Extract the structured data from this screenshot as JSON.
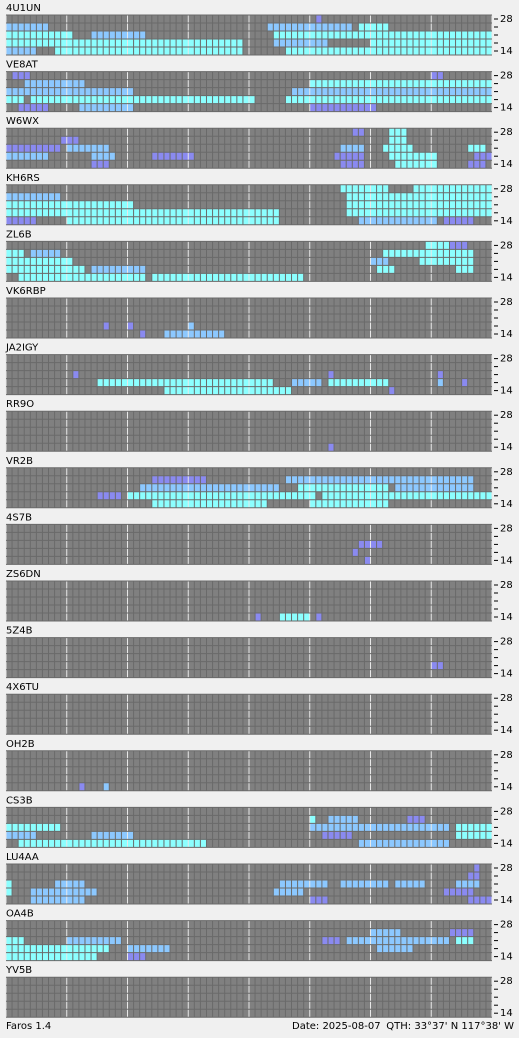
{
  "band_labels": {
    "top": "28",
    "bottom": "14"
  },
  "level_colors": [
    "#8a8af0",
    "#8cc8ff",
    "#8cffff"
  ],
  "panels": [
    {
      "name": "4U1UN",
      "spans": [
        [
          0,
          51,
          51,
          1
        ],
        [
          1,
          0,
          6,
          2
        ],
        [
          1,
          43,
          56,
          2
        ],
        [
          1,
          58,
          62,
          3
        ],
        [
          2,
          0,
          10,
          3
        ],
        [
          2,
          14,
          22,
          2
        ],
        [
          2,
          44,
          79,
          3
        ],
        [
          3,
          0,
          38,
          3
        ],
        [
          3,
          44,
          52,
          2
        ],
        [
          3,
          60,
          79,
          3
        ],
        [
          4,
          0,
          4,
          2
        ],
        [
          4,
          8,
          38,
          3
        ],
        [
          4,
          46,
          79,
          3
        ]
      ]
    },
    {
      "name": "VE8AT",
      "spans": [
        [
          0,
          1,
          3,
          1
        ],
        [
          0,
          70,
          71,
          1
        ],
        [
          1,
          3,
          12,
          2
        ],
        [
          1,
          50,
          79,
          3
        ],
        [
          2,
          0,
          20,
          2
        ],
        [
          2,
          47,
          79,
          2
        ],
        [
          3,
          0,
          2,
          3
        ],
        [
          3,
          4,
          40,
          3
        ],
        [
          3,
          46,
          79,
          3
        ],
        [
          4,
          2,
          6,
          1
        ],
        [
          4,
          12,
          20,
          2
        ],
        [
          4,
          50,
          60,
          1
        ]
      ]
    },
    {
      "name": "W6WX",
      "spans": [
        [
          0,
          57,
          58,
          1
        ],
        [
          0,
          63,
          65,
          3
        ],
        [
          1,
          9,
          11,
          1
        ],
        [
          1,
          63,
          65,
          3
        ],
        [
          2,
          0,
          8,
          1
        ],
        [
          2,
          10,
          16,
          2
        ],
        [
          2,
          55,
          58,
          2
        ],
        [
          2,
          62,
          66,
          3
        ],
        [
          2,
          76,
          78,
          3
        ],
        [
          3,
          0,
          6,
          2
        ],
        [
          3,
          14,
          17,
          2
        ],
        [
          3,
          24,
          30,
          1
        ],
        [
          3,
          54,
          58,
          1
        ],
        [
          3,
          63,
          70,
          3
        ],
        [
          3,
          77,
          79,
          1
        ],
        [
          4,
          14,
          16,
          1
        ],
        [
          4,
          55,
          58,
          1
        ],
        [
          4,
          64,
          70,
          3
        ],
        [
          4,
          76,
          78,
          1
        ]
      ]
    },
    {
      "name": "KH6RS",
      "spans": [
        [
          0,
          55,
          62,
          3
        ],
        [
          0,
          67,
          79,
          3
        ],
        [
          1,
          0,
          8,
          2
        ],
        [
          1,
          56,
          79,
          3
        ],
        [
          2,
          0,
          20,
          3
        ],
        [
          2,
          56,
          79,
          3
        ],
        [
          3,
          0,
          44,
          3
        ],
        [
          3,
          56,
          79,
          3
        ],
        [
          4,
          0,
          4,
          1
        ],
        [
          4,
          10,
          44,
          3
        ],
        [
          4,
          58,
          70,
          2
        ],
        [
          4,
          72,
          76,
          1
        ]
      ]
    },
    {
      "name": "ZL6B",
      "spans": [
        [
          0,
          69,
          72,
          3
        ],
        [
          0,
          73,
          75,
          1
        ],
        [
          1,
          0,
          2,
          3
        ],
        [
          1,
          4,
          8,
          2
        ],
        [
          1,
          62,
          76,
          3
        ],
        [
          2,
          0,
          10,
          3
        ],
        [
          2,
          60,
          62,
          2
        ],
        [
          2,
          68,
          76,
          3
        ],
        [
          3,
          0,
          12,
          3
        ],
        [
          3,
          14,
          22,
          2
        ],
        [
          3,
          61,
          63,
          3
        ],
        [
          3,
          74,
          76,
          3
        ],
        [
          4,
          2,
          22,
          3
        ],
        [
          4,
          24,
          48,
          3
        ]
      ]
    },
    {
      "name": "VK6RBP",
      "spans": [
        [
          3,
          16,
          16,
          1
        ],
        [
          3,
          20,
          20,
          1
        ],
        [
          3,
          30,
          30,
          2
        ],
        [
          4,
          22,
          22,
          1
        ],
        [
          4,
          26,
          35,
          2
        ]
      ]
    },
    {
      "name": "JA2IGY",
      "spans": [
        [
          2,
          11,
          11,
          1
        ],
        [
          2,
          53,
          53,
          1
        ],
        [
          2,
          71,
          71,
          1
        ],
        [
          3,
          15,
          43,
          3
        ],
        [
          3,
          47,
          51,
          2
        ],
        [
          3,
          53,
          62,
          3
        ],
        [
          3,
          71,
          71,
          2
        ],
        [
          3,
          75,
          75,
          1
        ],
        [
          4,
          26,
          46,
          3
        ],
        [
          4,
          63,
          63,
          1
        ]
      ]
    },
    {
      "name": "RR9O",
      "spans": [
        [
          4,
          53,
          53,
          1
        ]
      ]
    },
    {
      "name": "VR2B",
      "spans": [
        [
          1,
          24,
          32,
          1
        ],
        [
          1,
          46,
          76,
          2
        ],
        [
          2,
          22,
          44,
          2
        ],
        [
          2,
          48,
          62,
          3
        ],
        [
          2,
          64,
          76,
          2
        ],
        [
          3,
          15,
          18,
          1
        ],
        [
          3,
          20,
          50,
          3
        ],
        [
          3,
          52,
          79,
          3
        ],
        [
          4,
          24,
          42,
          3
        ],
        [
          4,
          50,
          62,
          3
        ]
      ]
    },
    {
      "name": "4S7B",
      "spans": [
        [
          2,
          58,
          61,
          1
        ],
        [
          3,
          57,
          57,
          1
        ],
        [
          4,
          59,
          59,
          1
        ]
      ]
    },
    {
      "name": "ZS6DN",
      "spans": [
        [
          4,
          41,
          41,
          1
        ],
        [
          4,
          45,
          49,
          3
        ],
        [
          4,
          51,
          51,
          1
        ]
      ]
    },
    {
      "name": "5Z4B",
      "spans": [
        [
          3,
          70,
          71,
          1
        ]
      ]
    },
    {
      "name": "4X6TU",
      "spans": []
    },
    {
      "name": "OH2B",
      "spans": [
        [
          4,
          12,
          12,
          1
        ],
        [
          4,
          16,
          16,
          2
        ]
      ]
    },
    {
      "name": "CS3B",
      "spans": [
        [
          1,
          50,
          50,
          3
        ],
        [
          1,
          53,
          57,
          2
        ],
        [
          1,
          66,
          68,
          1
        ],
        [
          2,
          0,
          8,
          3
        ],
        [
          2,
          50,
          72,
          2
        ],
        [
          2,
          74,
          79,
          3
        ],
        [
          3,
          0,
          4,
          2
        ],
        [
          3,
          14,
          20,
          2
        ],
        [
          3,
          52,
          56,
          1
        ],
        [
          3,
          74,
          79,
          3
        ],
        [
          4,
          2,
          32,
          3
        ],
        [
          4,
          58,
          72,
          2
        ]
      ]
    },
    {
      "name": "LU4AA",
      "spans": [
        [
          0,
          77,
          77,
          1
        ],
        [
          1,
          76,
          77,
          1
        ],
        [
          2,
          0,
          0,
          3
        ],
        [
          2,
          8,
          12,
          2
        ],
        [
          2,
          45,
          52,
          2
        ],
        [
          2,
          55,
          62,
          2
        ],
        [
          2,
          64,
          68,
          2
        ],
        [
          2,
          74,
          77,
          2
        ],
        [
          3,
          0,
          0,
          3
        ],
        [
          3,
          4,
          14,
          2
        ],
        [
          3,
          44,
          48,
          2
        ],
        [
          3,
          72,
          76,
          1
        ],
        [
          4,
          4,
          12,
          2
        ],
        [
          4,
          50,
          52,
          1
        ],
        [
          4,
          76,
          79,
          1
        ]
      ]
    },
    {
      "name": "OA4B",
      "spans": [
        [
          1,
          60,
          64,
          2
        ],
        [
          1,
          73,
          76,
          1
        ],
        [
          2,
          0,
          2,
          3
        ],
        [
          2,
          10,
          18,
          2
        ],
        [
          2,
          52,
          54,
          1
        ],
        [
          2,
          56,
          72,
          2
        ],
        [
          2,
          74,
          76,
          3
        ],
        [
          3,
          0,
          16,
          3
        ],
        [
          3,
          20,
          26,
          2
        ],
        [
          3,
          61,
          66,
          2
        ],
        [
          4,
          0,
          14,
          3
        ],
        [
          4,
          20,
          22,
          1
        ]
      ]
    },
    {
      "name": "YV5B",
      "spans": []
    }
  ],
  "footer": {
    "app": "Faros 1.4",
    "date": "Date: 2025-08-07",
    "qth": "QTH: 33°37' N  117°38' W"
  }
}
